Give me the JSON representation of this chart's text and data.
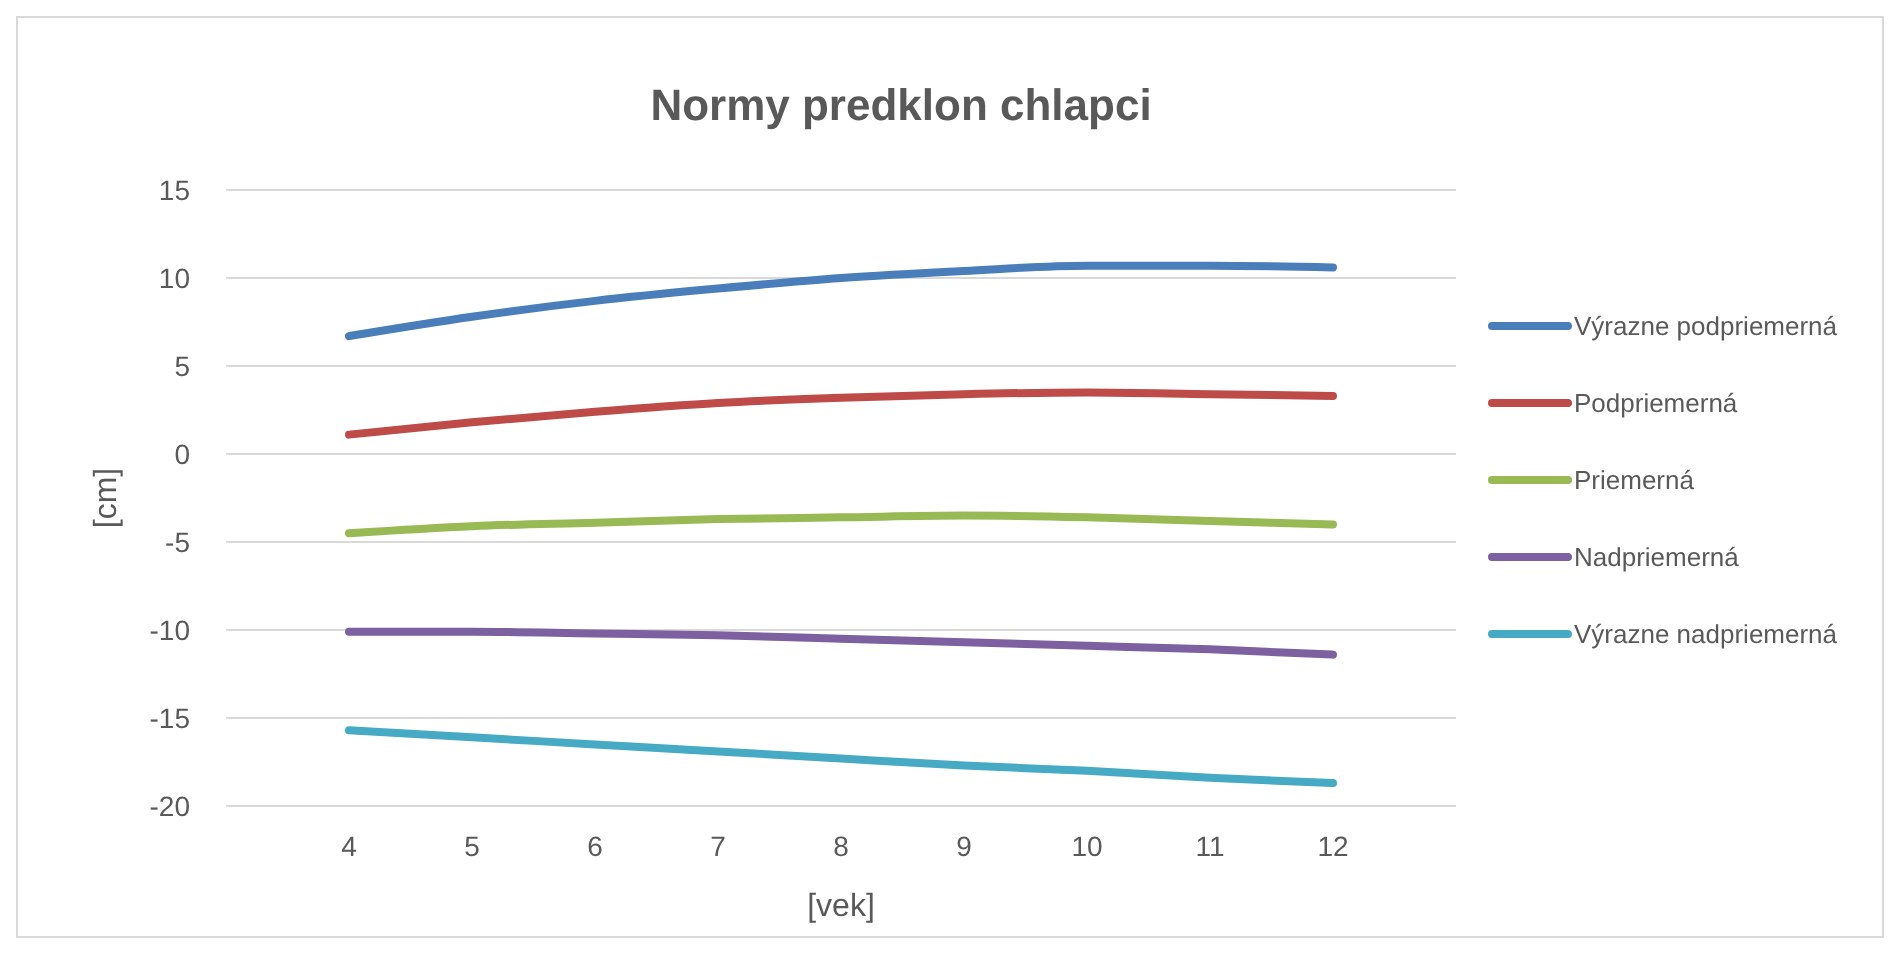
{
  "chart_data": {
    "type": "line",
    "title": "Normy predklon chlapci",
    "xlabel": "[vek]",
    "ylabel": "[cm]",
    "x": [
      4,
      5,
      6,
      7,
      8,
      9,
      10,
      11,
      12
    ],
    "xlim": [
      3,
      13
    ],
    "xticks": [
      4,
      5,
      6,
      7,
      8,
      9,
      10,
      11,
      12
    ],
    "ylim": [
      -20,
      15
    ],
    "yticks": [
      -20,
      -15,
      -10,
      -5,
      0,
      5,
      10,
      15
    ],
    "grid": "y",
    "legend": "right",
    "marker": "none",
    "line_style": "solid",
    "series": [
      {
        "name": "Výrazne podpriemerná",
        "color": "#4a7ebb",
        "values": [
          6.7,
          7.8,
          8.7,
          9.4,
          10.0,
          10.4,
          10.7,
          10.7,
          10.6
        ]
      },
      {
        "name": "Podpriemerná",
        "color": "#be4b48",
        "values": [
          1.1,
          1.8,
          2.4,
          2.9,
          3.2,
          3.4,
          3.5,
          3.4,
          3.3
        ]
      },
      {
        "name": "Priemerná",
        "color": "#98b954",
        "values": [
          -4.5,
          -4.1,
          -3.9,
          -3.7,
          -3.6,
          -3.5,
          -3.6,
          -3.8,
          -4.0
        ]
      },
      {
        "name": "Nadpriemerná",
        "color": "#7d60a0",
        "values": [
          -10.1,
          -10.1,
          -10.2,
          -10.3,
          -10.5,
          -10.7,
          -10.9,
          -11.1,
          -11.4
        ]
      },
      {
        "name": "Výrazne nadpriemerná",
        "color": "#46aac5",
        "values": [
          -15.7,
          -16.1,
          -16.5,
          -16.9,
          -17.3,
          -17.7,
          -18.0,
          -18.4,
          -18.7
        ]
      }
    ]
  }
}
